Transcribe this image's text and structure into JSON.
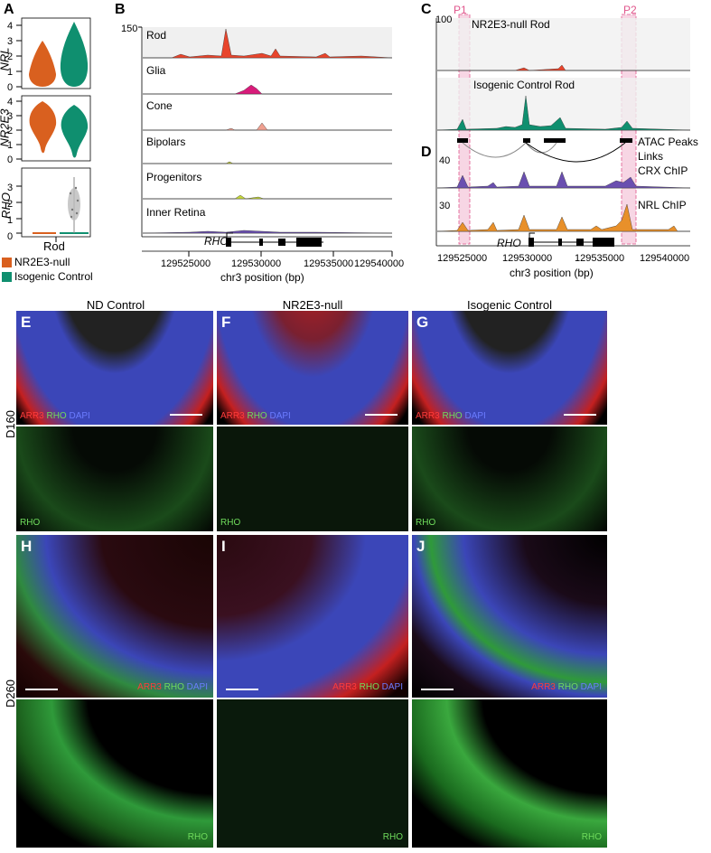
{
  "panels": {
    "A": {
      "label": "A",
      "genes": [
        "NRL",
        "NR2E3",
        "RHO"
      ],
      "yticks": {
        "NRL": [
          "4",
          "3",
          "2",
          "1",
          "0"
        ],
        "NR2E3": [
          "4",
          "3",
          "2",
          "1",
          "0"
        ],
        "RHO": [
          "3",
          "2",
          "1",
          "0"
        ]
      },
      "xlabel": "Rod",
      "legend": [
        {
          "name": "NR2E3-null",
          "color": "#d9601f"
        },
        {
          "name": "Isogenic Control",
          "color": "#0f8f6f"
        }
      ]
    },
    "B": {
      "label": "B",
      "ymax": "150",
      "tracks": [
        "Rod",
        "Glia",
        "Cone",
        "Bipolars",
        "Progenitors",
        "Inner Retina"
      ],
      "gene": "RHO",
      "xticks": [
        "129525000",
        "129530000",
        "129535000",
        "129540000"
      ],
      "xlabel": "chr3 position (bp)"
    },
    "C": {
      "label": "C",
      "peaks": [
        "P1",
        "P2"
      ],
      "track1": "NR2E3-null Rod",
      "track2": "Isogenic Control Rod",
      "ymax": "100"
    },
    "D": {
      "label": "D",
      "atac": "ATAC Peaks",
      "links": "Links",
      "crx": "CRX ChIP",
      "crx_ymax": "40",
      "nrl": "NRL ChIP",
      "nrl_ymax": "30",
      "gene": "RHO",
      "xticks": [
        "129525000",
        "129530000",
        "129535000",
        "129540000"
      ],
      "xlabel": "chr3 position (bp)"
    }
  },
  "micro": {
    "columns": [
      "ND Control",
      "NR2E3-null",
      "Isogenic Control"
    ],
    "rows": [
      "D160",
      "D260"
    ],
    "labels": [
      "E",
      "F",
      "G",
      "H",
      "I",
      "J"
    ],
    "stain_arr3": "ARR3",
    "stain_rho": "RHO",
    "stain_dapi": "DAPI"
  }
}
